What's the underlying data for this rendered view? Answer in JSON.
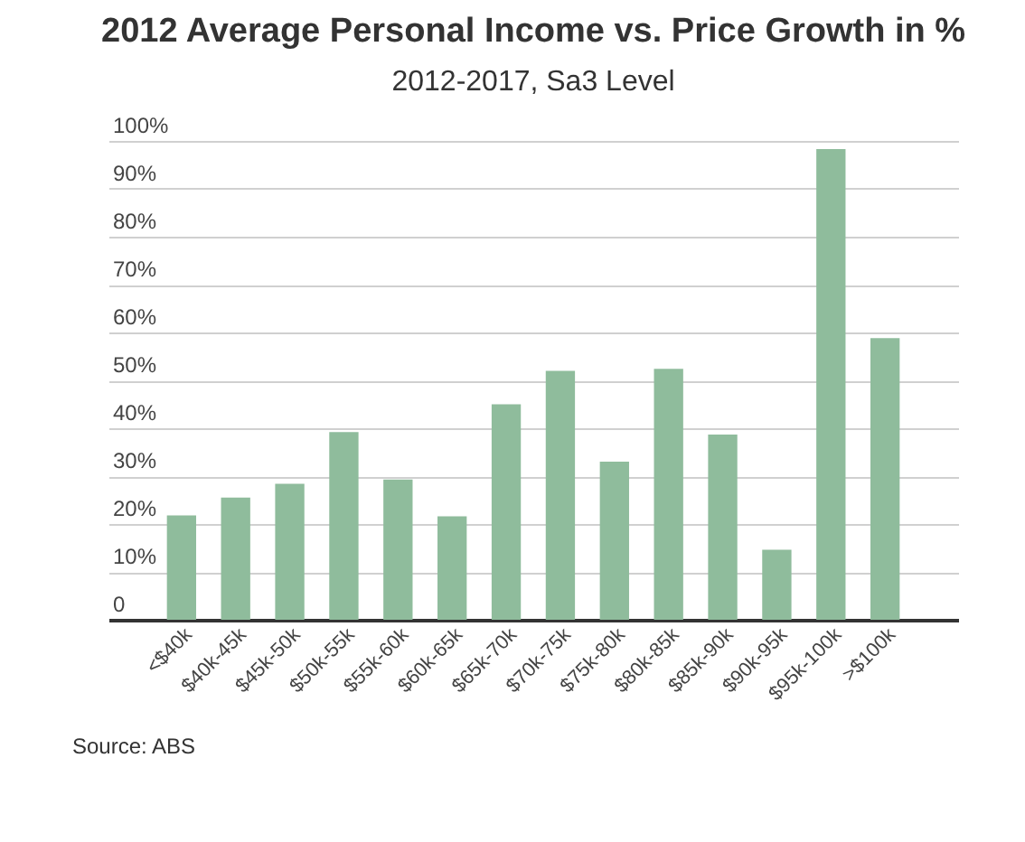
{
  "chart_data": {
    "type": "bar",
    "title": "2012 Average Personal Income vs. Price Growth in %",
    "subtitle": "2012-2017, Sa3 Level",
    "categories": [
      "<$40k",
      "$40k-45k",
      "$45k-50k",
      "$50k-55k",
      "$55k-60k",
      "$60k-65k",
      "$65k-70k",
      "$70k-75k",
      "$75k-80k",
      "$80k-85k",
      "$85k-90k",
      "$90k-95k",
      "$95k-100k",
      ">$100k"
    ],
    "values": [
      21.8,
      25.5,
      28.4,
      39.2,
      29.3,
      21.6,
      45,
      52,
      33,
      52.4,
      38.7,
      14.6,
      98.3,
      58.8
    ],
    "color": "#8fbc9c",
    "ylim": [
      0,
      100
    ],
    "yticks": [
      0,
      {
        "value": 10,
        "label": "10%"
      },
      {
        "value": 20,
        "label": "20%"
      },
      {
        "value": 30,
        "label": "30%"
      },
      {
        "value": 40,
        "label": "40%"
      },
      {
        "value": 50,
        "label": "50%"
      },
      {
        "value": 60,
        "label": "60%"
      },
      {
        "value": 70,
        "label": "70%"
      },
      {
        "value": 80,
        "label": "80%"
      },
      {
        "value": 90,
        "label": "90%"
      },
      {
        "value": 100,
        "label": "100%"
      }
    ],
    "grid": "y",
    "annotations": [
      "Source: ABS"
    ]
  }
}
